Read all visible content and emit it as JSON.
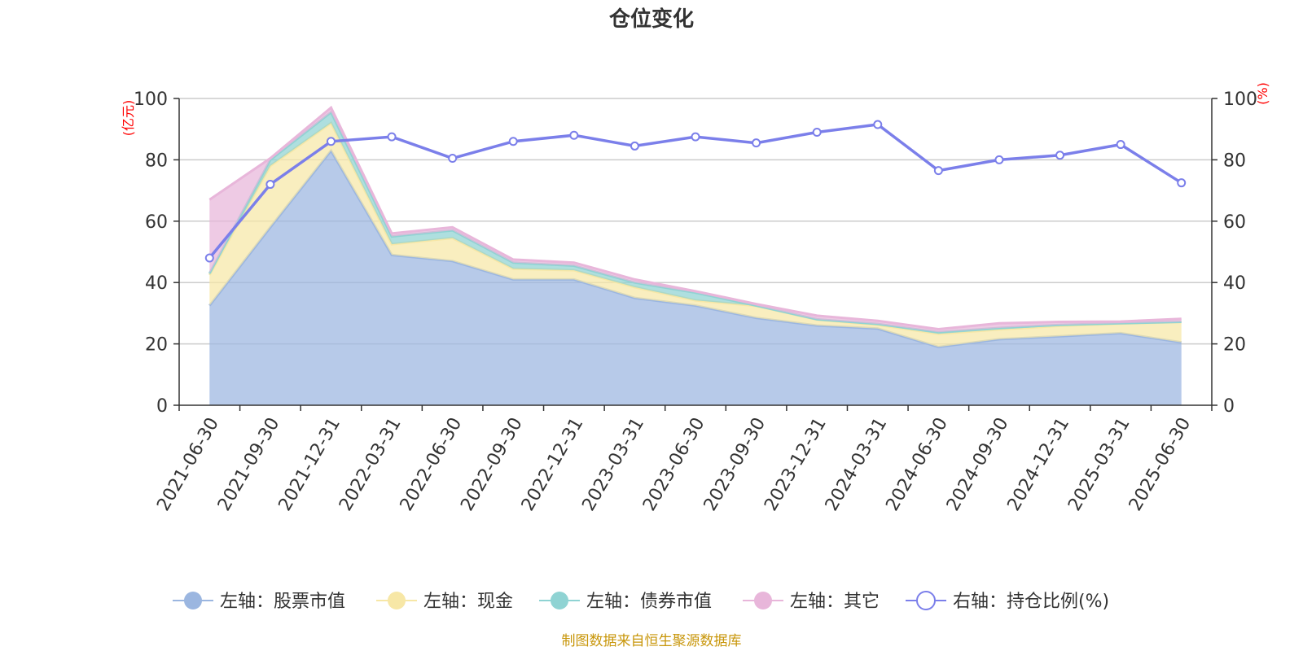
{
  "chart_data": {
    "type": "area",
    "title": "仓位变化",
    "left_axis_unit": "(亿元)",
    "right_axis_unit": "(%)",
    "ylim_left": [
      0,
      100
    ],
    "ylim_right": [
      0,
      100
    ],
    "y_ticks_left": [
      "0",
      "20",
      "40",
      "60",
      "80",
      "100"
    ],
    "y_ticks_right": [
      "0",
      "20",
      "40",
      "60",
      "80",
      "100"
    ],
    "categories": [
      "2021-06-30",
      "2021-09-30",
      "2021-12-31",
      "2022-03-31",
      "2022-06-30",
      "2022-09-30",
      "2022-12-31",
      "2023-03-31",
      "2023-06-30",
      "2023-09-30",
      "2023-12-31",
      "2024-03-31",
      "2024-06-30",
      "2024-09-30",
      "2024-12-31",
      "2025-03-31",
      "2025-06-30"
    ],
    "stacked_series": [
      {
        "name": "左轴：股票市值",
        "color": "#9bb6e0",
        "values": [
          32.5,
          58,
          83,
          49,
          47,
          41,
          41,
          35,
          32.5,
          28.5,
          26,
          25,
          19,
          21.5,
          22.5,
          23.5,
          20.5
        ]
      },
      {
        "name": "左轴：现金",
        "color": "#f7e7a6",
        "values": [
          10,
          20,
          9,
          3.5,
          7.5,
          3.5,
          3,
          3.5,
          1.7,
          3.9,
          1.9,
          1.2,
          4.3,
          3.2,
          3.4,
          3.1,
          6.6
        ]
      },
      {
        "name": "左轴：债券市值",
        "color": "#8fd3d3",
        "values": [
          0.5,
          2,
          3.5,
          2.5,
          2.5,
          2,
          1.5,
          1.5,
          2.5,
          0.1,
          0.1,
          0.3,
          0.5,
          0.5,
          0.3,
          0.1,
          0.1
        ]
      },
      {
        "name": "左轴：其它",
        "color": "#e8b6da",
        "values": [
          24,
          0.5,
          1.5,
          1,
          1,
          1,
          1,
          1,
          0.5,
          0.5,
          1.2,
          1,
          1,
          1.5,
          1,
          0.6,
          1
        ]
      }
    ],
    "line_series": {
      "name": "右轴：持仓比例(%)",
      "color": "#7b7fea",
      "values": [
        48,
        72,
        86,
        87.5,
        80.5,
        86,
        88,
        84.5,
        87.5,
        85.5,
        89,
        91.5,
        76.5,
        80,
        81.5,
        85,
        72.5
      ]
    },
    "source": "制图数据来自恒生聚源数据库"
  }
}
